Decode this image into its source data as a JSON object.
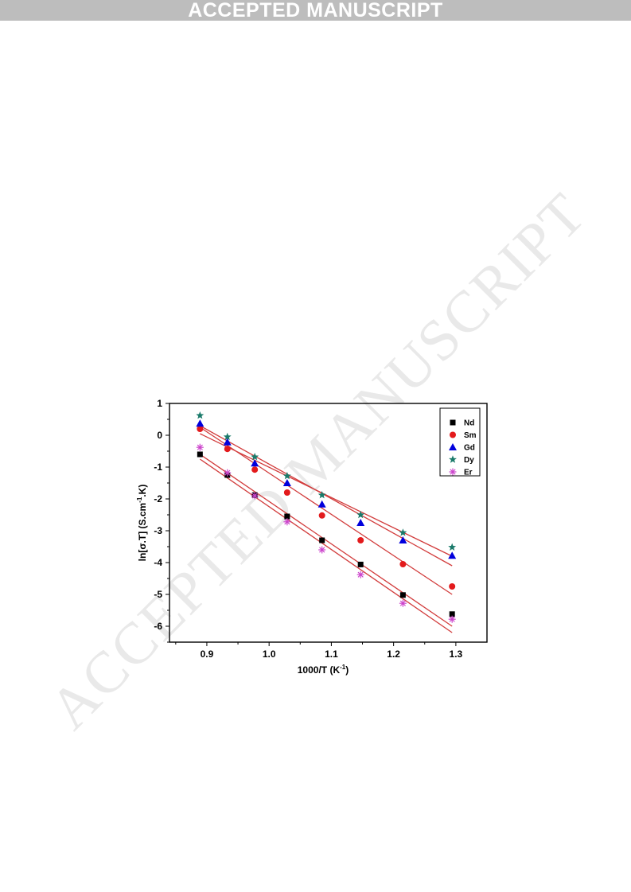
{
  "banner": {
    "text": "ACCEPTED MANUSCRIPT",
    "color": "#bdbdbd"
  },
  "watermark": {
    "text": "ACCEPTED MANUSCRIPT"
  },
  "chart_data": {
    "type": "scatter",
    "xlabel": "1000/T (K",
    "xlabel_sup": "-1",
    "xlabel_tail": ")",
    "ylabel": "ln[σ.T]  (S.cm",
    "ylabel_sup": "-1",
    "ylabel_tail": ".K)",
    "xlim": [
      0.84,
      1.35
    ],
    "ylim": [
      -6.5,
      1.0
    ],
    "xticks": [
      0.9,
      1.0,
      1.1,
      1.2,
      1.3
    ],
    "xtick_labels": [
      "0.9",
      "1.0",
      "1.1",
      "1.2",
      "1.3"
    ],
    "yticks": [
      1,
      0,
      -1,
      -2,
      -3,
      -4,
      -5,
      -6
    ],
    "ytick_labels": [
      "1",
      "0",
      "-1",
      "-2",
      "-3",
      "-4",
      "-5",
      "-6"
    ],
    "legend_position": "top-right",
    "fit_line_color": "#d23c3c",
    "x": [
      0.889,
      0.933,
      0.977,
      1.029,
      1.085,
      1.147,
      1.215,
      1.294
    ],
    "series": [
      {
        "name": "Nd",
        "marker": "square",
        "color": "#000000",
        "values": [
          -0.6,
          -1.25,
          -1.88,
          -2.55,
          -3.3,
          -4.06,
          -5.02,
          -5.62
        ],
        "fit": [
          [
            0.889,
            -0.6
          ],
          [
            1.294,
            -6.0
          ]
        ]
      },
      {
        "name": "Sm",
        "marker": "circle",
        "color": "#e31a1c",
        "values": [
          0.2,
          -0.43,
          -1.08,
          -1.8,
          -2.52,
          -3.3,
          -4.05,
          -4.75
        ],
        "fit": [
          [
            0.889,
            0.25
          ],
          [
            1.294,
            -5.0
          ]
        ]
      },
      {
        "name": "Gd",
        "marker": "triangle",
        "color": "#0000dd",
        "values": [
          0.37,
          -0.22,
          -0.88,
          -1.5,
          -2.17,
          -2.75,
          -3.3,
          -3.78
        ],
        "fit": [
          [
            0.889,
            0.3
          ],
          [
            1.294,
            -4.1
          ]
        ]
      },
      {
        "name": "Dy",
        "marker": "star",
        "color": "#1a7a6a",
        "values": [
          0.62,
          -0.05,
          -0.68,
          -1.28,
          -1.88,
          -2.5,
          -3.06,
          -3.52
        ],
        "fit": [
          [
            0.889,
            0.05
          ],
          [
            1.294,
            -3.8
          ]
        ]
      },
      {
        "name": "Er",
        "marker": "asterisk",
        "color": "#cc44cc",
        "values": [
          -0.38,
          -1.18,
          -1.9,
          -2.72,
          -3.6,
          -4.38,
          -5.28,
          -5.78
        ],
        "fit": [
          [
            0.889,
            -0.75
          ],
          [
            1.294,
            -6.2
          ]
        ]
      }
    ]
  }
}
